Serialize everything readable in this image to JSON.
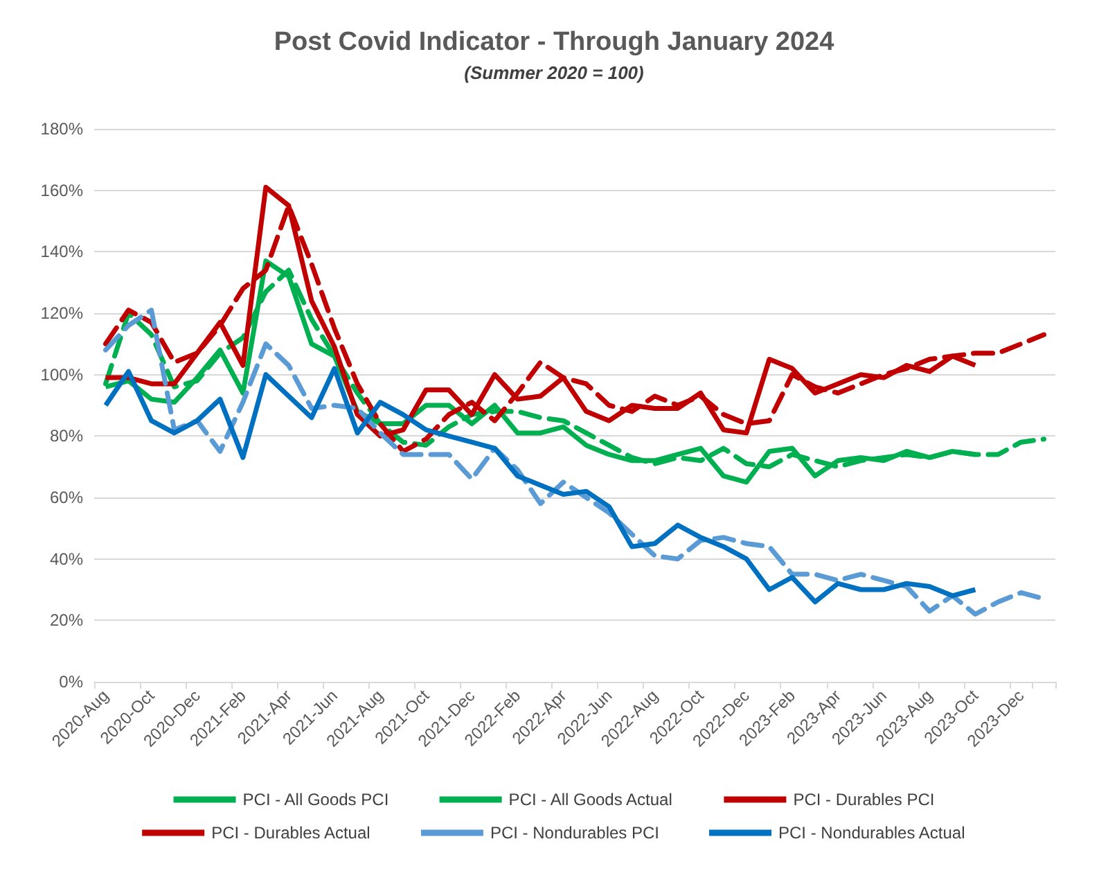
{
  "chart_data": {
    "type": "line",
    "title": "Post Covid Indicator - Through January 2024",
    "subtitle": "(Summer 2020 = 100)",
    "categories": [
      "2020-Aug",
      null,
      "2020-Oct",
      null,
      "2020-Dec",
      null,
      "2021-Feb",
      null,
      "2021-Apr",
      null,
      "2021-Jun",
      null,
      "2021-Aug",
      null,
      "2021-Oct",
      null,
      "2021-Dec",
      null,
      "2022-Feb",
      null,
      "2022-Apr",
      null,
      "2022-Jun",
      null,
      "2022-Aug",
      null,
      "2022-Oct",
      null,
      "2022-Dec",
      null,
      "2023-Feb",
      null,
      "2023-Apr",
      null,
      "2023-Jun",
      null,
      "2023-Aug",
      null,
      "2023-Oct",
      null,
      "2023-Dec",
      null
    ],
    "series": [
      {
        "name": "PCI - All Goods PCI",
        "color": "#00b050",
        "line_style": "dashed",
        "values": [
          97,
          120,
          113,
          96,
          98,
          107,
          112,
          127,
          134,
          118,
          106,
          94,
          84,
          78,
          77,
          83,
          87,
          88,
          88,
          86,
          85,
          81,
          77,
          73,
          71,
          73,
          72,
          76,
          71,
          70,
          74,
          72,
          70,
          72,
          73,
          74,
          73,
          75,
          74,
          74,
          78,
          79
        ]
      },
      {
        "name": "PCI - All Goods Actual",
        "color": "#00b050",
        "line_style": "solid",
        "values": [
          96,
          98,
          92,
          91,
          99,
          108,
          94,
          137,
          132,
          110,
          106,
          88,
          84,
          84,
          90,
          90,
          84,
          90,
          81,
          81,
          83,
          77,
          74,
          72,
          72,
          74,
          76,
          67,
          65,
          75,
          76,
          67,
          72,
          73,
          72,
          75,
          73,
          75,
          74,
          null,
          null,
          null
        ]
      },
      {
        "name": "PCI - Durables PCI",
        "color": "#c00000",
        "line_style": "dashed",
        "values": [
          110,
          121,
          117,
          104,
          107,
          116,
          128,
          134,
          155,
          136,
          115,
          97,
          84,
          75,
          79,
          87,
          91,
          85,
          94,
          104,
          99,
          97,
          90,
          88,
          93,
          90,
          93,
          87,
          84,
          85,
          100,
          96,
          94,
          97,
          100,
          102,
          105,
          106,
          107,
          107,
          110,
          113
        ]
      },
      {
        "name": "PCI - Durables Actual",
        "color": "#c00000",
        "line_style": "solid",
        "values": [
          99,
          99,
          97,
          97,
          107,
          117,
          103,
          161,
          155,
          124,
          109,
          87,
          80,
          82,
          95,
          95,
          87,
          100,
          92,
          93,
          99,
          88,
          85,
          90,
          89,
          89,
          94,
          82,
          81,
          105,
          102,
          94,
          97,
          100,
          99,
          103,
          101,
          106,
          103,
          null,
          null,
          null
        ]
      },
      {
        "name": "PCI - Nondurables PCI",
        "color": "#5b9bd5",
        "line_style": "dashed",
        "values": [
          108,
          116,
          121,
          82,
          85,
          75,
          91,
          110,
          103,
          89,
          90,
          89,
          81,
          74,
          74,
          74,
          66,
          76,
          69,
          58,
          65,
          60,
          55,
          48,
          41,
          40,
          46,
          47,
          45,
          44,
          35,
          35,
          33,
          35,
          33,
          31,
          23,
          28,
          22,
          26,
          29,
          27
        ]
      },
      {
        "name": "PCI - Nondurables Actual",
        "color": "#0070c0",
        "line_style": "solid",
        "values": [
          90,
          101,
          85,
          81,
          85,
          92,
          73,
          100,
          93,
          86,
          102,
          81,
          91,
          87,
          82,
          80,
          78,
          76,
          67,
          64,
          61,
          62,
          57,
          44,
          45,
          51,
          47,
          44,
          40,
          30,
          34,
          26,
          32,
          30,
          30,
          32,
          31,
          28,
          30,
          null,
          null,
          null
        ]
      }
    ],
    "ylim": [
      0,
      180
    ],
    "yticks": [
      {
        "value": 0,
        "label": "0%"
      },
      {
        "value": 20,
        "label": "20%"
      },
      {
        "value": 40,
        "label": "40%"
      },
      {
        "value": 60,
        "label": "60%"
      },
      {
        "value": 80,
        "label": "80%"
      },
      {
        "value": 100,
        "label": "100%"
      },
      {
        "value": 120,
        "label": "120%"
      },
      {
        "value": 140,
        "label": "140%"
      },
      {
        "value": 160,
        "label": "160%"
      },
      {
        "value": 180,
        "label": "180%"
      }
    ],
    "grid": "y",
    "legend": "bottom",
    "marker": "none"
  }
}
